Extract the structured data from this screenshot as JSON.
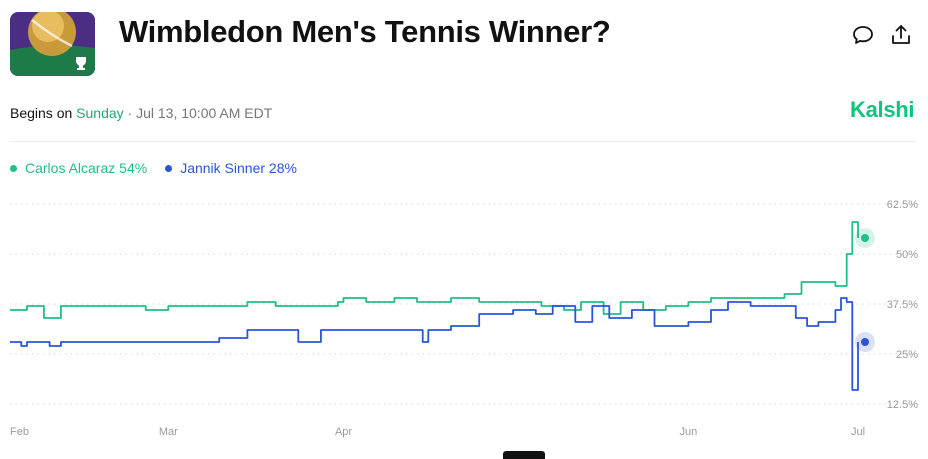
{
  "header": {
    "title": "Wimbledon Men's Tennis Winner?",
    "comment_icon": "comment-icon",
    "share_icon": "share-icon"
  },
  "event": {
    "begins_label": "Begins on",
    "day": "Sunday",
    "rest": "· Jul 13, 10:00 AM EDT"
  },
  "brand": {
    "name": "Kalshi",
    "color": "#0fc57e"
  },
  "legend": [
    {
      "name": "Carlos Alcaraz",
      "value": "54%",
      "color": "#1fbf86"
    },
    {
      "name": "Jannik Sinner",
      "value": "28%",
      "color": "#2a55d8"
    }
  ],
  "chart_data": {
    "type": "line",
    "title": "",
    "xlabel": "",
    "ylabel": "",
    "ylim": [
      12.5,
      62.5
    ],
    "y_ticks": [
      12.5,
      25,
      37.5,
      50,
      62.5
    ],
    "y_tick_labels": [
      "12.5%",
      "25%",
      "37.5%",
      "50%",
      "62.5%"
    ],
    "x_ticks": [
      {
        "label": "Feb",
        "date": "2025-02-01"
      },
      {
        "label": "Mar",
        "date": "2025-03-01"
      },
      {
        "label": "Apr",
        "date": "2025-04-01"
      },
      {
        "label": "Jun",
        "date": "2025-06-01"
      },
      {
        "label": "Jul",
        "date": "2025-07-01"
      }
    ],
    "x_range": [
      "2025-02-01",
      "2025-07-01"
    ],
    "grid": true,
    "legend_position": "top-left",
    "series": [
      {
        "name": "Carlos Alcaraz",
        "color": "#1fbf86",
        "current": 54,
        "points": [
          [
            "2025-02-01",
            36
          ],
          [
            "2025-02-04",
            37
          ],
          [
            "2025-02-07",
            34
          ],
          [
            "2025-02-10",
            37
          ],
          [
            "2025-02-18",
            37
          ],
          [
            "2025-02-25",
            36
          ],
          [
            "2025-03-01",
            37
          ],
          [
            "2025-03-10",
            37
          ],
          [
            "2025-03-15",
            38
          ],
          [
            "2025-03-20",
            37
          ],
          [
            "2025-03-25",
            37
          ],
          [
            "2025-03-31",
            38
          ],
          [
            "2025-04-01",
            39
          ],
          [
            "2025-04-05",
            38
          ],
          [
            "2025-04-10",
            39
          ],
          [
            "2025-04-14",
            38
          ],
          [
            "2025-04-20",
            39
          ],
          [
            "2025-04-25",
            38
          ],
          [
            "2025-05-01",
            38
          ],
          [
            "2025-05-06",
            37
          ],
          [
            "2025-05-10",
            36
          ],
          [
            "2025-05-13",
            38
          ],
          [
            "2025-05-17",
            35
          ],
          [
            "2025-05-20",
            38
          ],
          [
            "2025-05-24",
            36
          ],
          [
            "2025-05-28",
            37
          ],
          [
            "2025-06-01",
            38
          ],
          [
            "2025-06-05",
            39
          ],
          [
            "2025-06-10",
            39
          ],
          [
            "2025-06-15",
            39
          ],
          [
            "2025-06-18",
            40
          ],
          [
            "2025-06-21",
            43
          ],
          [
            "2025-06-24",
            43
          ],
          [
            "2025-06-27",
            42
          ],
          [
            "2025-06-29",
            50
          ],
          [
            "2025-06-30",
            58
          ],
          [
            "2025-07-01",
            56
          ],
          [
            "2025-07-01",
            54
          ]
        ]
      },
      {
        "name": "Jannik Sinner",
        "color": "#2a55d8",
        "current": 28,
        "points": [
          [
            "2025-02-01",
            28
          ],
          [
            "2025-02-03",
            27
          ],
          [
            "2025-02-04",
            28
          ],
          [
            "2025-02-08",
            27
          ],
          [
            "2025-02-10",
            28
          ],
          [
            "2025-02-20",
            28
          ],
          [
            "2025-03-01",
            28
          ],
          [
            "2025-03-10",
            29
          ],
          [
            "2025-03-15",
            31
          ],
          [
            "2025-03-20",
            31
          ],
          [
            "2025-03-24",
            28
          ],
          [
            "2025-03-28",
            31
          ],
          [
            "2025-04-05",
            31
          ],
          [
            "2025-04-12",
            31
          ],
          [
            "2025-04-15",
            28
          ],
          [
            "2025-04-16",
            31
          ],
          [
            "2025-04-20",
            32
          ],
          [
            "2025-04-25",
            35
          ],
          [
            "2025-05-01",
            36
          ],
          [
            "2025-05-05",
            35
          ],
          [
            "2025-05-08",
            37
          ],
          [
            "2025-05-12",
            33
          ],
          [
            "2025-05-15",
            37
          ],
          [
            "2025-05-18",
            34
          ],
          [
            "2025-05-22",
            36
          ],
          [
            "2025-05-26",
            32
          ],
          [
            "2025-06-01",
            33
          ],
          [
            "2025-06-05",
            36
          ],
          [
            "2025-06-08",
            38
          ],
          [
            "2025-06-12",
            37
          ],
          [
            "2025-06-16",
            37
          ],
          [
            "2025-06-20",
            34
          ],
          [
            "2025-06-22",
            32
          ],
          [
            "2025-06-24",
            33
          ],
          [
            "2025-06-27",
            36
          ],
          [
            "2025-06-28",
            39
          ],
          [
            "2025-06-29",
            38
          ],
          [
            "2025-06-30",
            16
          ],
          [
            "2025-07-01",
            22
          ],
          [
            "2025-07-01",
            28
          ]
        ]
      }
    ]
  }
}
